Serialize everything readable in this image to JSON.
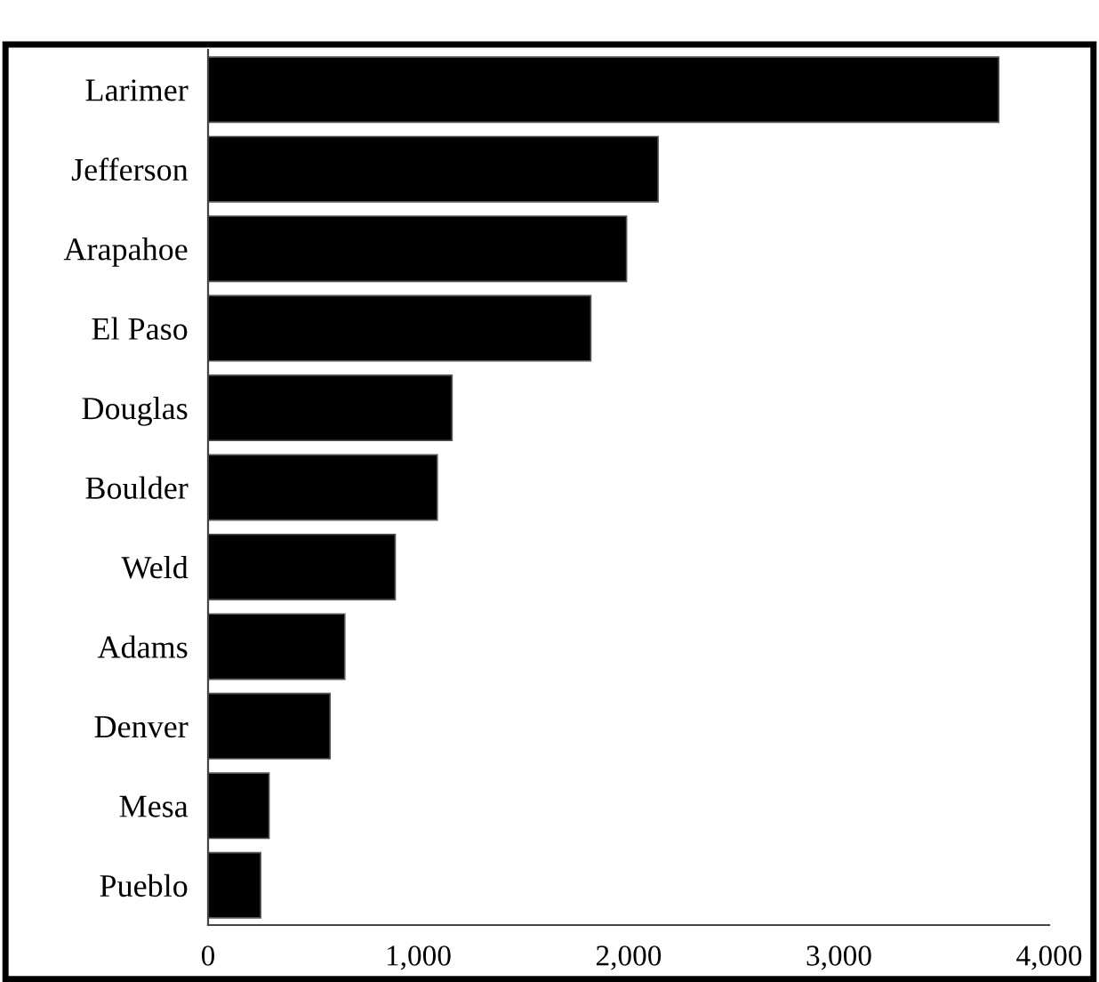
{
  "chart_data": {
    "type": "bar",
    "orientation": "horizontal",
    "categories": [
      "Larimer",
      "Jefferson",
      "Arapahoe",
      "El Paso",
      "Douglas",
      "Boulder",
      "Weld",
      "Adams",
      "Denver",
      "Mesa",
      "Pueblo"
    ],
    "values": [
      3760,
      2140,
      1990,
      1820,
      1160,
      1090,
      890,
      650,
      580,
      290,
      250
    ],
    "color": "#000000",
    "xlim": [
      0,
      4000
    ],
    "xticks": [
      0,
      {
        "value": 1000,
        "label": "1,000"
      },
      {
        "value": 2000,
        "label": "2,000"
      },
      {
        "value": 3000,
        "label": "3,000"
      },
      {
        "value": 4000,
        "label": "4,000"
      }
    ],
    "grid": false,
    "legend": false
  }
}
